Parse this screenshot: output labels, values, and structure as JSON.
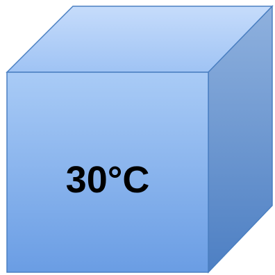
{
  "cube": {
    "label": "30°C",
    "colors": {
      "front_top": "#a9cbf6",
      "front_bottom": "#6a9de4",
      "top_back": "#c6dcfb",
      "top_front": "#9fc3f4",
      "side_top": "#8fb1de",
      "side_bottom": "#4d7fc3",
      "edge": "#4a7fc1"
    }
  }
}
